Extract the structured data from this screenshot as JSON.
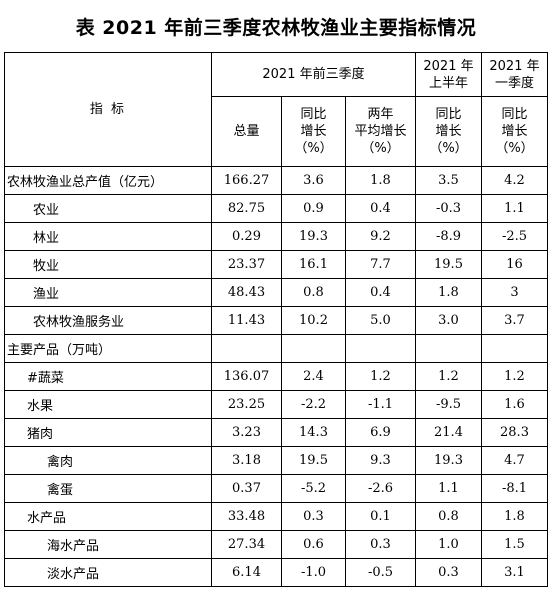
{
  "title": "表  2021 年前三季度农林牧渔业主要指标情况",
  "header": {
    "indicator": "指        标",
    "q1_3": "2021 年前三季度",
    "h1": [
      "2021 年",
      "上半年"
    ],
    "q1": [
      "2021 年",
      "一季度"
    ],
    "total": "总量",
    "yoy": [
      "同比",
      "增长",
      "（%）"
    ],
    "two_year": [
      "两年",
      "平均增长",
      "（%）"
    ],
    "h1_yoy": [
      "同比",
      "增长",
      "（%）"
    ],
    "q1_yoy": [
      "同比",
      "增长",
      "（%）"
    ]
  },
  "rows": [
    {
      "name": "农林牧渔业总产值（亿元）",
      "total": "166.27",
      "yoy": "3.6",
      "two_year": "1.8",
      "h1": "3.5",
      "q1": "4.2"
    },
    {
      "name": "农业",
      "total": "82.75",
      "yoy": "0.9",
      "two_year": "0.4",
      "h1": "-0.3",
      "q1": "1.1"
    },
    {
      "name": "林业",
      "total": "0.29",
      "yoy": "19.3",
      "two_year": "9.2",
      "h1": "-8.9",
      "q1": "-2.5"
    },
    {
      "name": "牧业",
      "total": "23.37",
      "yoy": "16.1",
      "two_year": "7.7",
      "h1": "19.5",
      "q1": "16"
    },
    {
      "name": "渔业",
      "total": "48.43",
      "yoy": "0.8",
      "two_year": "0.4",
      "h1": "1.8",
      "q1": "3"
    },
    {
      "name": "农林牧渔服务业",
      "total": "11.43",
      "yoy": "10.2",
      "two_year": "5.0",
      "h1": "3.0",
      "q1": "3.7"
    },
    {
      "name": "主要产品（万吨）",
      "total": "",
      "yoy": "",
      "two_year": "",
      "h1": "",
      "q1": ""
    },
    {
      "name": "#蔬菜",
      "total": "136.07",
      "yoy": "2.4",
      "two_year": "1.2",
      "h1": "1.2",
      "q1": "1.2"
    },
    {
      "name": "水果",
      "total": "23.25",
      "yoy": "-2.2",
      "two_year": "-1.1",
      "h1": "-9.5",
      "q1": "1.6"
    },
    {
      "name": "猪肉",
      "total": "3.23",
      "yoy": "14.3",
      "two_year": "6.9",
      "h1": "21.4",
      "q1": "28.3"
    },
    {
      "name": "禽肉",
      "total": "3.18",
      "yoy": "19.5",
      "two_year": "9.3",
      "h1": "19.3",
      "q1": "4.7"
    },
    {
      "name": "禽蛋",
      "total": "0.37",
      "yoy": "-5.2",
      "two_year": "-2.6",
      "h1": "1.1",
      "q1": "-8.1"
    },
    {
      "name": "水产品",
      "total": "33.48",
      "yoy": "0.3",
      "two_year": "0.1",
      "h1": "0.8",
      "q1": "1.8"
    },
    {
      "name": "海水产品",
      "total": "27.34",
      "yoy": "0.6",
      "two_year": "0.3",
      "h1": "1.0",
      "q1": "1.5"
    },
    {
      "name": "淡水产品",
      "total": "6.14",
      "yoy": "-1.0",
      "two_year": "-0.5",
      "h1": "0.3",
      "q1": "3.1"
    }
  ]
}
